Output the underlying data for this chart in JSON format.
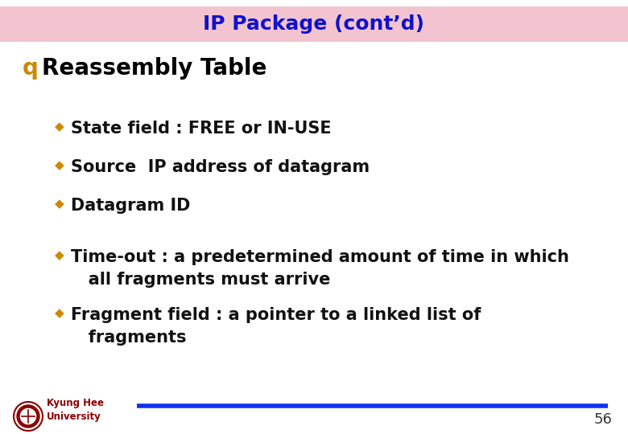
{
  "title": "IP Package (cont’d)",
  "title_color": "#1111CC",
  "title_bg_color": "#F2C4D0",
  "title_fontsize": 18,
  "main_bullet_text": "Reassembly Table",
  "main_bullet_color": "#000000",
  "main_bullet_fontsize": 20,
  "sub_bullets": [
    "State field : FREE or IN-USE",
    "Source  IP address of datagram",
    "Datagram ID",
    "Time-out : a predetermined amount of time in which\n   all fragments must arrive",
    "Fragment field : a pointer to a linked list of\n   fragments"
  ],
  "sub_bullet_color": "#111111",
  "sub_bullet_fontsize": 15,
  "bullet_diamond_color": "#CC8800",
  "main_bullet_marker_color": "#CC8800",
  "footer_line_color": "#1133EE",
  "footer_text": "Kyung Hee\nUniversity",
  "footer_text_color": "#8B0000",
  "page_number": "56",
  "page_number_color": "#333333",
  "bg_color": "#FFFFFF"
}
